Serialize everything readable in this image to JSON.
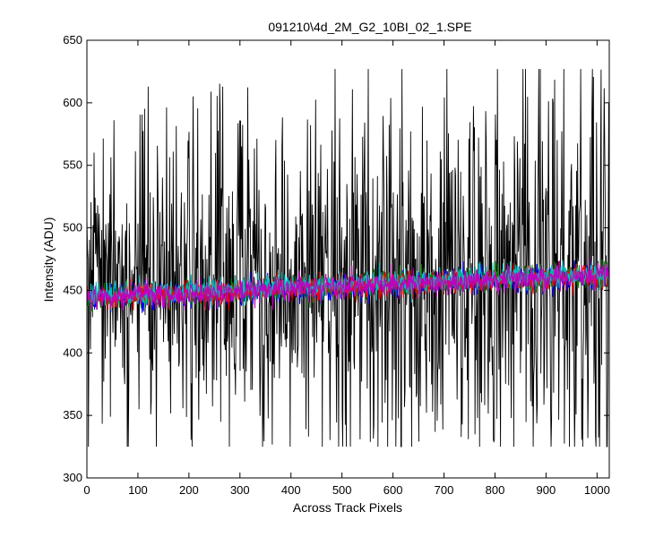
{
  "chart_data": {
    "type": "line",
    "title": "091210\\4d_2M_G2_10BI_02_1.SPE",
    "xlabel": "Across Track Pixels",
    "ylabel": "Intensity (ADU)",
    "xlim": [
      0,
      1024
    ],
    "ylim": [
      300,
      650
    ],
    "xticks": [
      0,
      100,
      200,
      300,
      400,
      500,
      600,
      700,
      800,
      900,
      1000
    ],
    "yticks": [
      300,
      350,
      400,
      450,
      500,
      550,
      600,
      650
    ],
    "grid": false,
    "legend": "none",
    "colors": {
      "axes": "#000000",
      "background": "#ffffff",
      "series": [
        "#000000",
        "#0000ff",
        "#008000",
        "#ff0000",
        "#00bfbf",
        "#bf00bf"
      ]
    },
    "series": [
      {
        "color": "#000000",
        "x_range": [
          0,
          1024
        ],
        "points": 1024,
        "baseline_start": 455,
        "baseline_end": 465,
        "min": 325,
        "max": 627,
        "description_values": "high-variance noisy trace; spikes up to ~620 and down to ~330"
      },
      {
        "color": "#0000ff",
        "x_range": [
          0,
          1024
        ],
        "points": 1024,
        "baseline_start": 443,
        "baseline_end": 462,
        "min": 432,
        "max": 478
      },
      {
        "color": "#008000",
        "x_range": [
          0,
          1024
        ],
        "points": 1024,
        "baseline_start": 444,
        "baseline_end": 463,
        "min": 433,
        "max": 478
      },
      {
        "color": "#ff0000",
        "x_range": [
          0,
          1024
        ],
        "points": 1024,
        "baseline_start": 445,
        "baseline_end": 462,
        "min": 434,
        "max": 477
      },
      {
        "color": "#00bfbf",
        "x_range": [
          0,
          1024
        ],
        "points": 1024,
        "baseline_start": 446,
        "baseline_end": 464,
        "min": 435,
        "max": 479
      },
      {
        "color": "#bf00bf",
        "x_range": [
          0,
          1024
        ],
        "points": 1024,
        "baseline_start": 444,
        "baseline_end": 462,
        "min": 434,
        "max": 476
      }
    ]
  }
}
